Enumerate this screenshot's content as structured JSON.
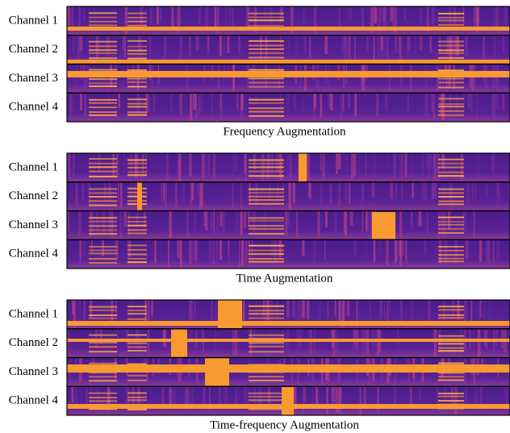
{
  "panels": [
    {
      "caption": "Frequency Augmentation",
      "channels": [
        "Channel 1",
        "Channel 2",
        "Channel 3",
        "Channel 4"
      ]
    },
    {
      "caption": "Time Augmentation",
      "channels": [
        "Channel 1",
        "Channel 2",
        "Channel 3",
        "Channel 4"
      ]
    },
    {
      "caption": "Time-frequency Augmentation",
      "channels": [
        "Channel 1",
        "Channel 2",
        "Channel 3",
        "Channel 4"
      ]
    }
  ]
}
